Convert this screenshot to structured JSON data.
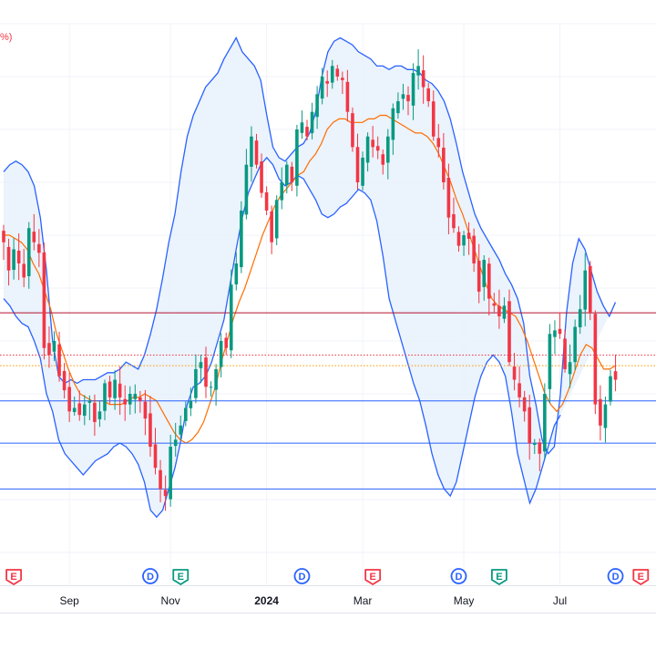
{
  "colors": {
    "up": "#089981",
    "down": "#f23645",
    "band_line": "#2962ff",
    "band_fill": "#e8f1fb",
    "basis": "#ff6d00",
    "level_red": "#b2102f",
    "level_blue": "#2962ff",
    "dotted_red": "#f23645",
    "dotted_orange": "#ff9800",
    "grid": "#f0f3fa",
    "event_dividend": "#2962ff",
    "event_earnings": "#f23645",
    "event_earnings_up": "#089981"
  },
  "corner_text": "%)",
  "chart_data": {
    "type": "candlestick",
    "title": "",
    "grid": true,
    "x_tick_labels": [
      {
        "label": "Sep",
        "index": 13,
        "bold": false
      },
      {
        "label": "Nov",
        "index": 33,
        "bold": false
      },
      {
        "label": "2024",
        "index": 52,
        "bold": true
      },
      {
        "label": "Mar",
        "index": 71,
        "bold": false
      },
      {
        "label": "May",
        "index": 91,
        "bold": false
      },
      {
        "label": "Jul",
        "index": 110,
        "bold": false
      }
    ],
    "y_range": [
      -100,
      50
    ],
    "candle_closes": [
      -12,
      -20,
      -14,
      -18,
      -22,
      -8,
      -12,
      -15,
      -42,
      -44,
      -40,
      -50,
      -54,
      -60,
      -59,
      -61,
      -58,
      -57,
      -63,
      -60,
      -52,
      -56,
      -51,
      -56,
      -58,
      -55,
      -55,
      -57,
      -62,
      -70,
      -76,
      -82,
      -84,
      -70,
      -68,
      -64,
      -59,
      -57,
      -48,
      -46,
      -53,
      -53,
      -48,
      -40,
      -42,
      -24,
      -18,
      -3,
      10,
      18,
      10,
      2,
      -3,
      -12,
      0,
      5,
      10,
      5,
      20,
      22,
      18,
      25,
      30,
      35,
      33,
      38,
      35,
      34,
      25,
      15,
      5,
      12,
      18,
      15,
      14,
      10,
      18,
      26,
      28,
      30,
      28,
      36,
      38,
      32,
      28,
      18,
      15,
      5,
      -5,
      -8,
      -13,
      -10,
      -11,
      -18,
      -26,
      -17,
      -28,
      -30,
      -33,
      -30,
      -46,
      -51,
      -56,
      -60,
      -69,
      -69,
      -72,
      -55,
      -38,
      -37,
      -38,
      -48,
      -46,
      -36,
      -31,
      -20,
      -32,
      -58,
      -64,
      -58,
      -50,
      -51
    ],
    "basis": [
      -10,
      -10,
      -11,
      -12,
      -14,
      -18,
      -21,
      -26,
      -31,
      -38,
      -43,
      -48,
      -52,
      -55,
      -56,
      -57,
      -57,
      -57,
      -58,
      -58,
      -58,
      -57,
      -56,
      -56,
      -55,
      -56,
      -57,
      -60,
      -63,
      -66,
      -68,
      -69,
      -68,
      -66,
      -63,
      -58,
      -53,
      -46,
      -40,
      -34,
      -29,
      -25,
      -20,
      -15,
      -10,
      -6,
      -2,
      1,
      3,
      5,
      7,
      8,
      11,
      13,
      16,
      20,
      22,
      23,
      23,
      22,
      22,
      22,
      23,
      23,
      24,
      24,
      23,
      22,
      21,
      20,
      19,
      19,
      18,
      16,
      13,
      9,
      5,
      0,
      -4,
      -9,
      -14,
      -19,
      -24,
      -28,
      -30,
      -31,
      -32,
      -33,
      -36,
      -40,
      -45,
      -50,
      -55,
      -58,
      -60,
      -58,
      -54,
      -49,
      -44,
      -41,
      -42,
      -45,
      -48,
      -48,
      -47
    ],
    "upper_band": [
      8,
      10,
      11,
      10,
      8,
      4,
      -5,
      -20,
      -40,
      -50,
      -52,
      -51,
      -52,
      -51,
      -51,
      -51,
      -50,
      -49,
      -49,
      -48,
      -46,
      -47,
      -48,
      -44,
      -38,
      -31,
      -22,
      -12,
      -4,
      8,
      18,
      24,
      28,
      32,
      34,
      36,
      40,
      43,
      46,
      42,
      40,
      38,
      34,
      24,
      15,
      12,
      11,
      13,
      15,
      16,
      19,
      25,
      35,
      42,
      45,
      46,
      45,
      44,
      42,
      41,
      40,
      38,
      38,
      37,
      38,
      38,
      37,
      37,
      36,
      34,
      33,
      31,
      28,
      23,
      16,
      8,
      2,
      -4,
      -8,
      -11,
      -14,
      -17,
      -21,
      -24,
      -28,
      -35,
      -50,
      -58,
      -68,
      -72,
      -70,
      -55,
      -32,
      -18,
      -11,
      -14,
      -20,
      -26,
      -30,
      -33,
      -29
    ],
    "lower_band": [
      -28,
      -30,
      -33,
      -35,
      -36,
      -40,
      -45,
      -55,
      -60,
      -68,
      -72,
      -74,
      -76,
      -78,
      -76,
      -74,
      -73,
      -72,
      -70,
      -69,
      -70,
      -72,
      -75,
      -80,
      -88,
      -90,
      -88,
      -82,
      -76,
      -68,
      -58,
      -53,
      -52,
      -50,
      -46,
      -40,
      -34,
      -24,
      -14,
      -5,
      2,
      6,
      10,
      12,
      10,
      6,
      4,
      5,
      7,
      6,
      3,
      0,
      -4,
      -5,
      -4,
      -2,
      -1,
      1,
      3,
      2,
      0,
      -6,
      -16,
      -28,
      -34,
      -40,
      -46,
      -52,
      -57,
      -64,
      -72,
      -78,
      -82,
      -84,
      -80,
      -72,
      -64,
      -56,
      -50,
      -46,
      -44,
      -46,
      -50,
      -60,
      -72,
      -79,
      -86,
      -82,
      -76,
      -70,
      -64,
      -61
    ],
    "horizontal_levels": [
      {
        "value": -32,
        "color_key": "level_red",
        "style": "solid"
      },
      {
        "value": -44,
        "color_key": "dotted_red",
        "style": "dotted"
      },
      {
        "value": -47,
        "color_key": "dotted_orange",
        "style": "dotted"
      },
      {
        "value": -57,
        "color_key": "level_blue",
        "style": "solid"
      },
      {
        "value": -69,
        "color_key": "level_blue",
        "style": "solid"
      },
      {
        "value": -82,
        "color_key": "level_blue",
        "style": "solid"
      }
    ],
    "events": [
      {
        "index": 2,
        "label": "E",
        "kind": "earnings",
        "color_key": "event_earnings"
      },
      {
        "index": 29,
        "label": "D",
        "kind": "dividend",
        "color_key": "event_dividend"
      },
      {
        "index": 35,
        "label": "E",
        "kind": "earnings",
        "color_key": "event_earnings_up"
      },
      {
        "index": 59,
        "label": "D",
        "kind": "dividend",
        "color_key": "event_dividend"
      },
      {
        "index": 73,
        "label": "E",
        "kind": "earnings",
        "color_key": "event_earnings"
      },
      {
        "index": 90,
        "label": "D",
        "kind": "dividend",
        "color_key": "event_dividend"
      },
      {
        "index": 98,
        "label": "E",
        "kind": "earnings",
        "color_key": "event_earnings_up"
      },
      {
        "index": 121,
        "label": "D",
        "kind": "dividend",
        "color_key": "event_dividend"
      },
      {
        "index": 126,
        "label": "E",
        "kind": "earnings",
        "color_key": "event_earnings"
      }
    ]
  }
}
